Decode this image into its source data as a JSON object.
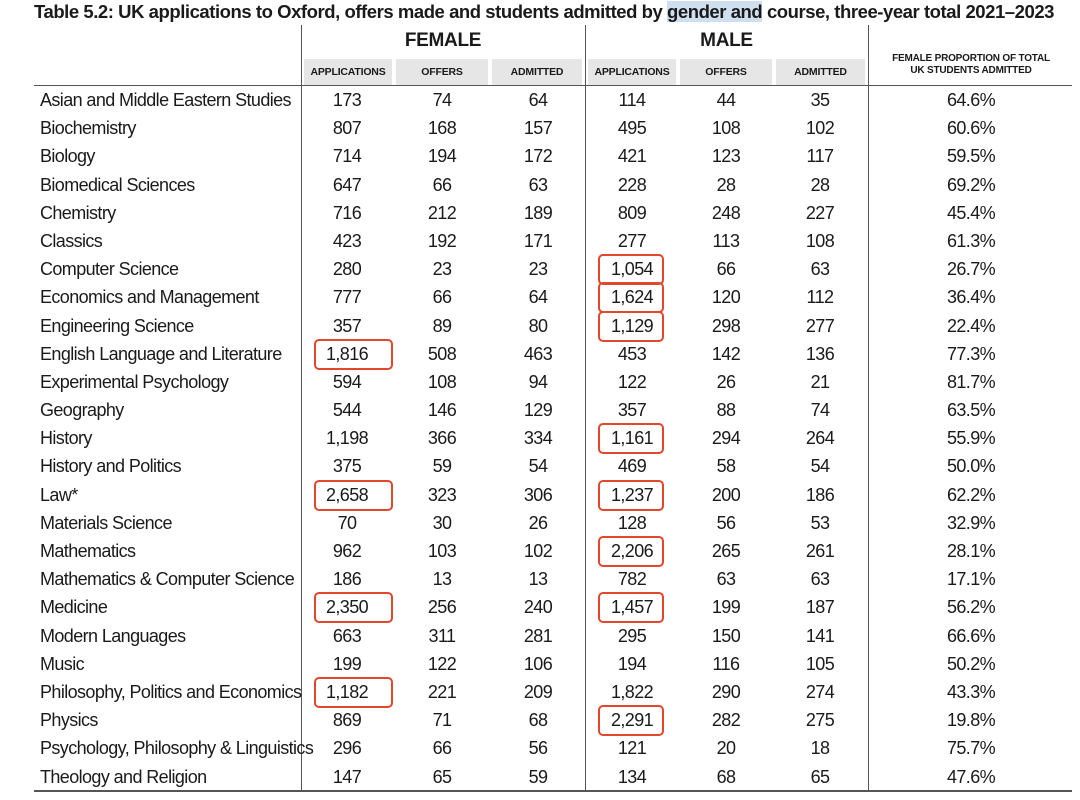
{
  "title_parts": {
    "before": "Table 5.2: UK applications to Oxford, offers made and students admitted by ",
    "highlight": "gender and",
    "after": " course, three-year total 2021–2023"
  },
  "groups": {
    "female": "FEMALE",
    "male": "MALE"
  },
  "subheaders": {
    "applications": "APPLICATIONS",
    "offers": "OFFERS",
    "admitted": "ADMITTED"
  },
  "proportion_header": {
    "line1": "FEMALE PROPORTION OF TOTAL",
    "line2": "UK STUDENTS ADMITTED"
  },
  "rows": [
    {
      "course": "Asian and Middle Eastern Studies",
      "f_app": "173",
      "f_off": "74",
      "f_adm": "64",
      "m_app": "114",
      "m_off": "44",
      "m_adm": "35",
      "prop": "64.6%",
      "f_app_hl": false,
      "m_app_hl": false
    },
    {
      "course": "Biochemistry",
      "f_app": "807",
      "f_off": "168",
      "f_adm": "157",
      "m_app": "495",
      "m_off": "108",
      "m_adm": "102",
      "prop": "60.6%",
      "f_app_hl": false,
      "m_app_hl": false
    },
    {
      "course": "Biology",
      "f_app": "714",
      "f_off": "194",
      "f_adm": "172",
      "m_app": "421",
      "m_off": "123",
      "m_adm": "117",
      "prop": "59.5%",
      "f_app_hl": false,
      "m_app_hl": false
    },
    {
      "course": "Biomedical Sciences",
      "f_app": "647",
      "f_off": "66",
      "f_adm": "63",
      "m_app": "228",
      "m_off": "28",
      "m_adm": "28",
      "prop": "69.2%",
      "f_app_hl": false,
      "m_app_hl": false
    },
    {
      "course": "Chemistry",
      "f_app": "716",
      "f_off": "212",
      "f_adm": "189",
      "m_app": "809",
      "m_off": "248",
      "m_adm": "227",
      "prop": "45.4%",
      "f_app_hl": false,
      "m_app_hl": false
    },
    {
      "course": "Classics",
      "f_app": "423",
      "f_off": "192",
      "f_adm": "171",
      "m_app": "277",
      "m_off": "113",
      "m_adm": "108",
      "prop": "61.3%",
      "f_app_hl": false,
      "m_app_hl": false
    },
    {
      "course": "Computer Science",
      "f_app": "280",
      "f_off": "23",
      "f_adm": "23",
      "m_app": "1,054",
      "m_off": "66",
      "m_adm": "63",
      "prop": "26.7%",
      "f_app_hl": false,
      "m_app_hl": true
    },
    {
      "course": "Economics and Management",
      "f_app": "777",
      "f_off": "66",
      "f_adm": "64",
      "m_app": "1,624",
      "m_off": "120",
      "m_adm": "112",
      "prop": "36.4%",
      "f_app_hl": false,
      "m_app_hl": true
    },
    {
      "course": "Engineering Science",
      "f_app": "357",
      "f_off": "89",
      "f_adm": "80",
      "m_app": "1,129",
      "m_off": "298",
      "m_adm": "277",
      "prop": "22.4%",
      "f_app_hl": false,
      "m_app_hl": true
    },
    {
      "course": "English Language and Literature",
      "f_app": "1,816",
      "f_off": "508",
      "f_adm": "463",
      "m_app": "453",
      "m_off": "142",
      "m_adm": "136",
      "prop": "77.3%",
      "f_app_hl": true,
      "m_app_hl": false
    },
    {
      "course": "Experimental Psychology",
      "f_app": "594",
      "f_off": "108",
      "f_adm": "94",
      "m_app": "122",
      "m_off": "26",
      "m_adm": "21",
      "prop": "81.7%",
      "f_app_hl": false,
      "m_app_hl": false
    },
    {
      "course": "Geography",
      "f_app": "544",
      "f_off": "146",
      "f_adm": "129",
      "m_app": "357",
      "m_off": "88",
      "m_adm": "74",
      "prop": "63.5%",
      "f_app_hl": false,
      "m_app_hl": false
    },
    {
      "course": "History",
      "f_app": "1,198",
      "f_off": "366",
      "f_adm": "334",
      "m_app": "1,161",
      "m_off": "294",
      "m_adm": "264",
      "prop": "55.9%",
      "f_app_hl": false,
      "m_app_hl": true
    },
    {
      "course": "History and Politics",
      "f_app": "375",
      "f_off": "59",
      "f_adm": "54",
      "m_app": "469",
      "m_off": "58",
      "m_adm": "54",
      "prop": "50.0%",
      "f_app_hl": false,
      "m_app_hl": false
    },
    {
      "course": "Law*",
      "f_app": "2,658",
      "f_off": "323",
      "f_adm": "306",
      "m_app": "1,237",
      "m_off": "200",
      "m_adm": "186",
      "prop": "62.2%",
      "f_app_hl": true,
      "m_app_hl": true
    },
    {
      "course": "Materials Science",
      "f_app": "70",
      "f_off": "30",
      "f_adm": "26",
      "m_app": "128",
      "m_off": "56",
      "m_adm": "53",
      "prop": "32.9%",
      "f_app_hl": false,
      "m_app_hl": false
    },
    {
      "course": "Mathematics",
      "f_app": "962",
      "f_off": "103",
      "f_adm": "102",
      "m_app": "2,206",
      "m_off": "265",
      "m_adm": "261",
      "prop": "28.1%",
      "f_app_hl": false,
      "m_app_hl": true
    },
    {
      "course": "Mathematics & Computer Science",
      "f_app": "186",
      "f_off": "13",
      "f_adm": "13",
      "m_app": "782",
      "m_off": "63",
      "m_adm": "63",
      "prop": "17.1%",
      "f_app_hl": false,
      "m_app_hl": false
    },
    {
      "course": "Medicine",
      "f_app": "2,350",
      "f_off": "256",
      "f_adm": "240",
      "m_app": "1,457",
      "m_off": "199",
      "m_adm": "187",
      "prop": "56.2%",
      "f_app_hl": true,
      "m_app_hl": true
    },
    {
      "course": "Modern Languages",
      "f_app": "663",
      "f_off": "311",
      "f_adm": "281",
      "m_app": "295",
      "m_off": "150",
      "m_adm": "141",
      "prop": "66.6%",
      "f_app_hl": false,
      "m_app_hl": false
    },
    {
      "course": "Music",
      "f_app": "199",
      "f_off": "122",
      "f_adm": "106",
      "m_app": "194",
      "m_off": "116",
      "m_adm": "105",
      "prop": "50.2%",
      "f_app_hl": false,
      "m_app_hl": false
    },
    {
      "course": "Philosophy, Politics and Economics",
      "f_app": "1,182",
      "f_off": "221",
      "f_adm": "209",
      "m_app": "1,822",
      "m_off": "290",
      "m_adm": "274",
      "prop": "43.3%",
      "f_app_hl": true,
      "m_app_hl": false
    },
    {
      "course": "Physics",
      "f_app": "869",
      "f_off": "71",
      "f_adm": "68",
      "m_app": "2,291",
      "m_off": "282",
      "m_adm": "275",
      "prop": "19.8%",
      "f_app_hl": false,
      "m_app_hl": true
    },
    {
      "course": "Psychology, Philosophy & Linguistics",
      "f_app": "296",
      "f_off": "66",
      "f_adm": "56",
      "m_app": "121",
      "m_off": "20",
      "m_adm": "18",
      "prop": "75.7%",
      "f_app_hl": false,
      "m_app_hl": false
    },
    {
      "course": "Theology and Religion",
      "f_app": "147",
      "f_off": "65",
      "f_adm": "59",
      "m_app": "134",
      "m_off": "68",
      "m_adm": "65",
      "prop": "47.6%",
      "f_app_hl": false,
      "m_app_hl": false
    }
  ],
  "colors": {
    "highlight_box": "#e2462d",
    "title_highlight": "#cfdff0",
    "header_bg": "#e6e6e6"
  }
}
